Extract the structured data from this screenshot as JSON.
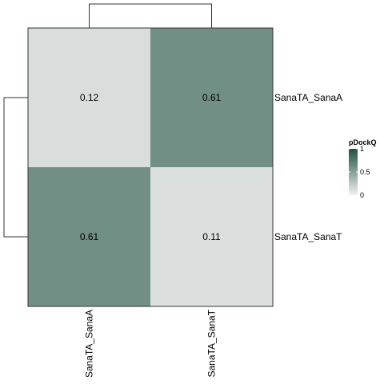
{
  "chart_data": {
    "type": "heatmap",
    "rows": [
      "SanaTA_SanaA",
      "SanaTA_SanaT"
    ],
    "columns": [
      "SanaTA_SanaA",
      "SanaTA_SanaT"
    ],
    "values": [
      [
        0.12,
        0.61
      ],
      [
        0.61,
        0.11
      ]
    ],
    "colorbar": {
      "title": "pDockQ",
      "ticks": [
        "0",
        "0.5",
        "1"
      ],
      "range": [
        0,
        1
      ],
      "low_color": "#f2f2f2",
      "high_color": "#1e4f3f"
    },
    "row_dendrogram": "left",
    "column_dendrogram": "top"
  }
}
